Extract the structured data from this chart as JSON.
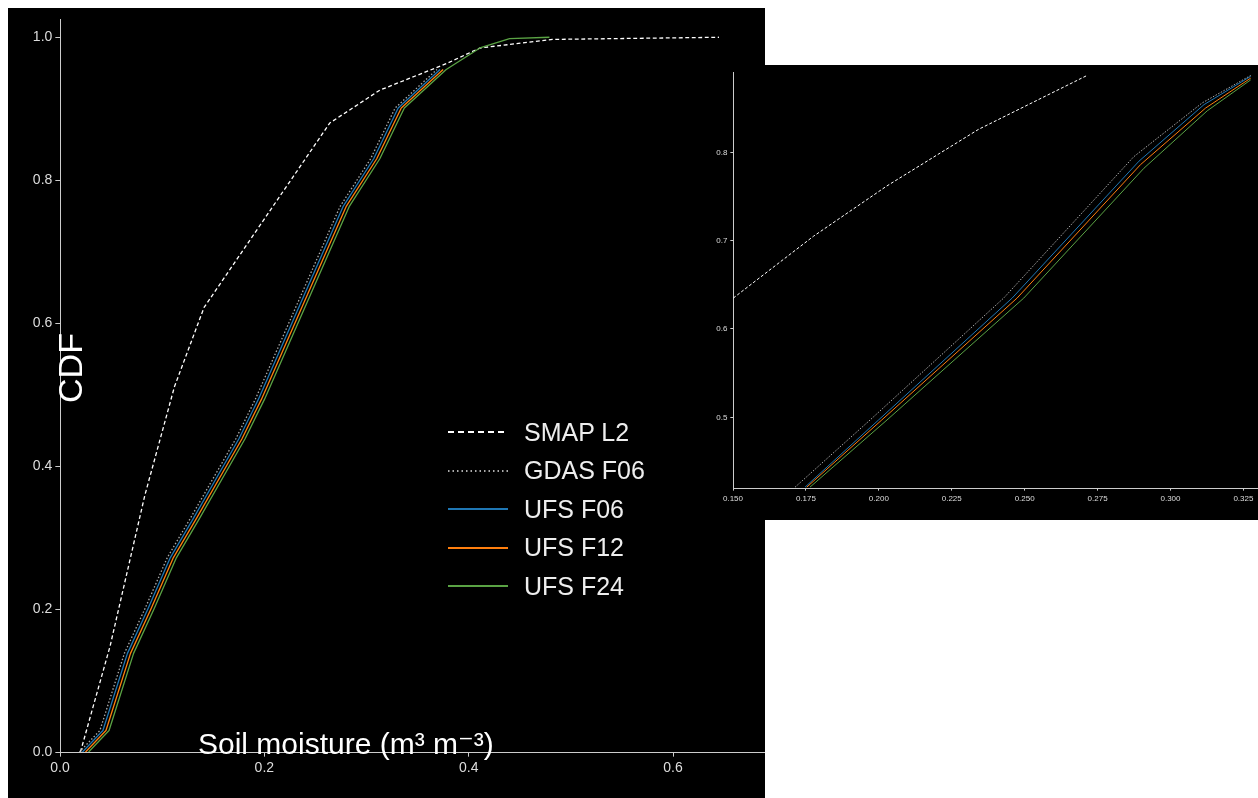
{
  "chart_data": [
    {
      "type": "line",
      "xlabel": "Soil moisture (m³ m⁻³)",
      "ylabel": "CDF",
      "xlim": [
        0,
        0.69
      ],
      "ylim": [
        0,
        1.025
      ],
      "xticks": [
        {
          "value": 0,
          "label": "0.0"
        },
        0.2,
        0.4,
        0.6
      ],
      "yticks": [
        {
          "value": 0,
          "label": "0.0"
        },
        0.2,
        0.4,
        0.6,
        0.8,
        {
          "value": 1,
          "label": "1.0"
        }
      ],
      "legend": "right",
      "series": [
        {
          "name": "SMAP L2",
          "color": "#ffffff",
          "line_style": "dashed",
          "x": [
            0.02,
            0.049,
            0.083,
            0.112,
            0.141,
            0.264,
            0.313,
            0.378,
            0.411,
            0.482,
            0.645
          ],
          "values": [
            0,
            0.148,
            0.359,
            0.511,
            0.622,
            0.88,
            0.926,
            0.963,
            0.985,
            0.997,
            1.0
          ]
        },
        {
          "name": "GDAS F06",
          "color": "#aaaaaa",
          "line_style": "dotted",
          "x": [
            0.019,
            0.039,
            0.063,
            0.083,
            0.105,
            0.128,
            0.172,
            0.191,
            0.274,
            0.304,
            0.328,
            0.369
          ],
          "values": [
            0,
            0.03,
            0.138,
            0.2,
            0.272,
            0.328,
            0.438,
            0.493,
            0.763,
            0.83,
            0.901,
            0.955
          ]
        },
        {
          "name": "UFS F06",
          "color": "#1f77b4",
          "line_style": "solid",
          "x": [
            0.022,
            0.042,
            0.066,
            0.086,
            0.108,
            0.131,
            0.175,
            0.194,
            0.277,
            0.307,
            0.331,
            0.372
          ],
          "values": [
            0,
            0.03,
            0.138,
            0.2,
            0.272,
            0.328,
            0.438,
            0.493,
            0.763,
            0.83,
            0.901,
            0.955
          ]
        },
        {
          "name": "UFS F12",
          "color": "#ff7f0e",
          "line_style": "solid",
          "x": [
            0.025,
            0.045,
            0.069,
            0.089,
            0.111,
            0.134,
            0.178,
            0.197,
            0.28,
            0.31,
            0.334,
            0.375
          ],
          "values": [
            0,
            0.03,
            0.138,
            0.2,
            0.272,
            0.328,
            0.438,
            0.493,
            0.763,
            0.83,
            0.901,
            0.955
          ]
        },
        {
          "name": "UFS F24",
          "color": "#5aa344",
          "line_style": "solid",
          "x": [
            0.028,
            0.048,
            0.072,
            0.092,
            0.114,
            0.137,
            0.181,
            0.2,
            0.283,
            0.313,
            0.337,
            0.378,
            0.411,
            0.44,
            0.479
          ],
          "values": [
            0,
            0.03,
            0.138,
            0.2,
            0.272,
            0.328,
            0.438,
            0.493,
            0.763,
            0.83,
            0.901,
            0.955,
            0.985,
            0.998,
            1.0
          ]
        }
      ]
    },
    {
      "type": "line",
      "xlim": [
        0.15,
        0.33
      ],
      "ylim": [
        0.42,
        0.89
      ],
      "xticks": [
        {
          "value": 0.15,
          "label": "0.150"
        },
        0.175,
        {
          "value": 0.2,
          "label": "0.200"
        },
        0.225,
        {
          "value": 0.25,
          "label": "0.250"
        },
        0.275,
        {
          "value": 0.3,
          "label": "0.300"
        },
        0.325
      ],
      "yticks": [
        0.5,
        0.6,
        0.7,
        0.8
      ],
      "series": [
        {
          "color": "#ffffff",
          "line_style": "dashed",
          "x": [
            0.1501,
            0.1776,
            0.2028,
            0.2342,
            0.2714
          ],
          "values": [
            0.635,
            0.705,
            0.762,
            0.826,
            0.887
          ]
        },
        {
          "color": "#aaaaaa",
          "line_style": "dotted",
          "x": [
            0.1713,
            0.197,
            0.2428,
            0.2874,
            0.3109,
            0.3275
          ],
          "values": [
            0.421,
            0.497,
            0.635,
            0.795,
            0.856,
            0.887
          ]
        },
        {
          "color": "#1f77b4",
          "line_style": "solid",
          "x": [
            0.1747,
            0.1999,
            0.2457,
            0.2892,
            0.3115,
            0.3275
          ],
          "values": [
            0.421,
            0.497,
            0.635,
            0.79,
            0.854,
            0.886
          ]
        },
        {
          "color": "#ff7f0e",
          "line_style": "solid",
          "x": [
            0.1753,
            0.201,
            0.2474,
            0.2897,
            0.312,
            0.3275
          ],
          "values": [
            0.421,
            0.497,
            0.635,
            0.786,
            0.85,
            0.884
          ]
        },
        {
          "color": "#5aa344",
          "line_style": "solid",
          "x": [
            0.1764,
            0.2028,
            0.2497,
            0.2909,
            0.3126,
            0.3275
          ],
          "values": [
            0.421,
            0.497,
            0.635,
            0.782,
            0.847,
            0.882
          ]
        }
      ]
    }
  ]
}
